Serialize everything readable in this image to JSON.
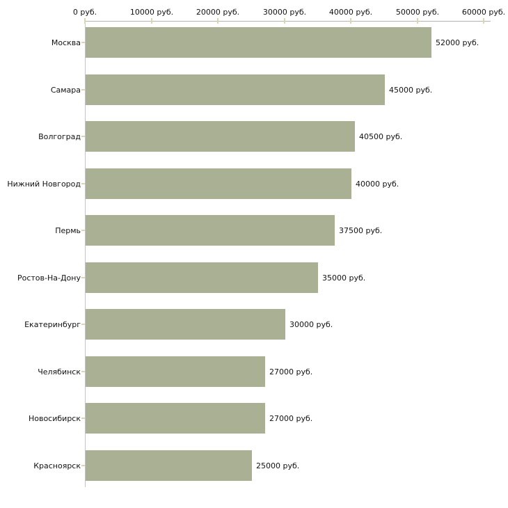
{
  "chart_data": {
    "type": "bar",
    "orientation": "horizontal",
    "title": "",
    "xlabel": "",
    "ylabel": "",
    "unit": "руб.",
    "categories": [
      "Москва",
      "Самара",
      "Волгоград",
      "Нижний Новгород",
      "Пермь",
      "Ростов-На-Дону",
      "Екатеринбург",
      "Челябинск",
      "Новосибирск",
      "Красноярск"
    ],
    "values": [
      52000,
      45000,
      40500,
      40000,
      37500,
      35000,
      30000,
      27000,
      27000,
      25000
    ],
    "value_labels": [
      "52000 руб.",
      "45000 руб.",
      "40500 руб.",
      "40000 руб.",
      "37500 руб.",
      "35000 руб.",
      "30000 руб.",
      "27000 руб.",
      "27000 руб.",
      "25000 руб."
    ],
    "x_tick_values": [
      0,
      10000,
      20000,
      30000,
      40000,
      50000,
      60000
    ],
    "x_tick_labels": [
      "0 руб.",
      "10000 руб.",
      "20000 руб.",
      "30000 руб.",
      "40000 руб.",
      "50000 руб.",
      "60000 руб."
    ],
    "xlim": [
      0,
      60000
    ],
    "grid": false,
    "legend": false,
    "colors": {
      "bar": "#aab094",
      "x_axis_line": "#b3b3b3",
      "y_axis_line": "#c4c4c4",
      "tick_mark": "#d8d8b0",
      "text": "#111111",
      "background": "#ffffff"
    }
  }
}
